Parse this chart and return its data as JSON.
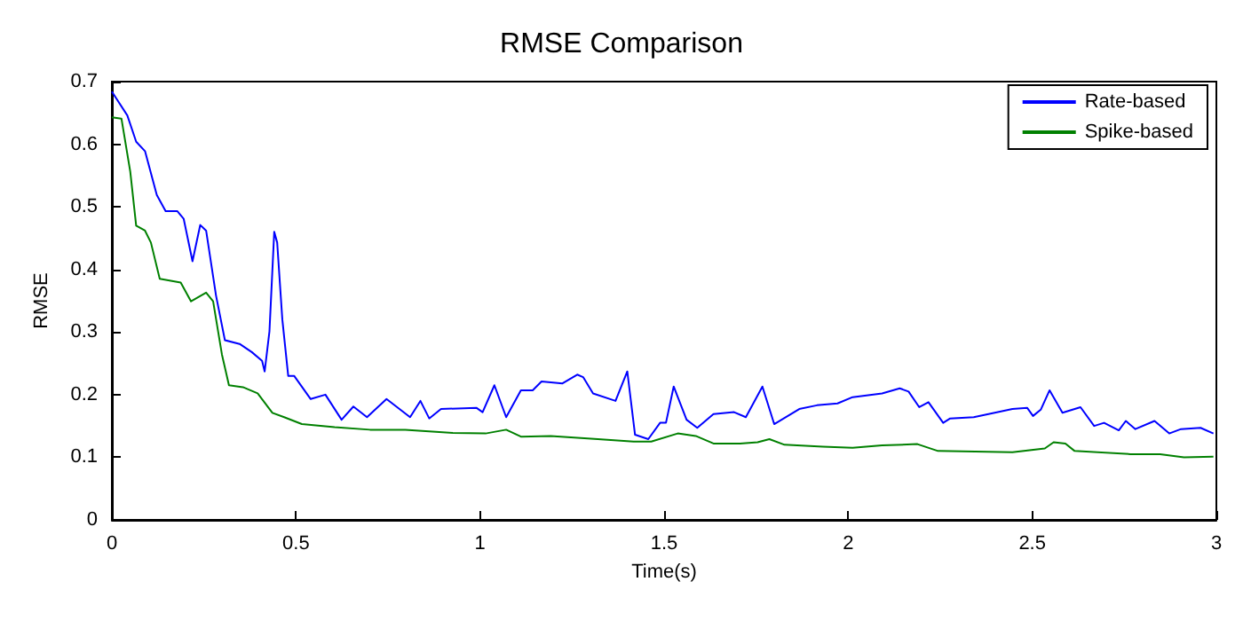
{
  "chart_data": {
    "type": "line",
    "title": "RMSE Comparison",
    "xlabel": "Time(s)",
    "ylabel": "RMSE",
    "xlim": [
      0,
      3
    ],
    "xticks": [
      0,
      0.5,
      1,
      1.5,
      2,
      2.5,
      3
    ],
    "ylim": [
      0,
      0.7
    ],
    "yticks": [
      0,
      0.1,
      0.2,
      0.3,
      0.4,
      0.5,
      0.6,
      0.7
    ],
    "legend": "top right",
    "marker": "none",
    "line_style": "solid",
    "series": [
      {
        "name": "Rate-based",
        "color": "#0000ff",
        "x": [
          0,
          0.042,
          0.066,
          0.09,
          0.122,
          0.146,
          0.178,
          0.195,
          0.219,
          0.24,
          0.256,
          0.283,
          0.307,
          0.347,
          0.38,
          0.408,
          0.415,
          0.428,
          0.441,
          0.449,
          0.463,
          0.479,
          0.495,
          0.54,
          0.58,
          0.624,
          0.656,
          0.693,
          0.746,
          0.81,
          0.838,
          0.862,
          0.894,
          0.99,
          1.007,
          1.039,
          1.071,
          1.111,
          1.143,
          1.167,
          1.224,
          1.264,
          1.28,
          1.307,
          1.368,
          1.4,
          1.421,
          1.457,
          1.489,
          1.505,
          1.526,
          1.561,
          1.59,
          1.634,
          1.69,
          1.722,
          1.767,
          1.799,
          1.867,
          1.915,
          1.971,
          2.012,
          2.092,
          2.14,
          2.164,
          2.193,
          2.218,
          2.258,
          2.277,
          2.341,
          2.398,
          2.446,
          2.486,
          2.502,
          2.523,
          2.547,
          2.582,
          2.631,
          2.668,
          2.695,
          2.735,
          2.754,
          2.78,
          2.832,
          2.872,
          2.904,
          2.957,
          2.992
        ],
        "values": [
          0.684,
          0.646,
          0.604,
          0.589,
          0.519,
          0.493,
          0.493,
          0.481,
          0.413,
          0.471,
          0.462,
          0.358,
          0.287,
          0.281,
          0.268,
          0.254,
          0.237,
          0.301,
          0.46,
          0.443,
          0.32,
          0.23,
          0.23,
          0.193,
          0.2,
          0.16,
          0.181,
          0.164,
          0.193,
          0.164,
          0.19,
          0.162,
          0.177,
          0.179,
          0.172,
          0.215,
          0.164,
          0.207,
          0.207,
          0.221,
          0.218,
          0.232,
          0.228,
          0.202,
          0.19,
          0.237,
          0.136,
          0.129,
          0.155,
          0.155,
          0.213,
          0.16,
          0.147,
          0.169,
          0.172,
          0.164,
          0.213,
          0.153,
          0.177,
          0.183,
          0.186,
          0.196,
          0.202,
          0.21,
          0.205,
          0.18,
          0.188,
          0.155,
          0.162,
          0.164,
          0.171,
          0.177,
          0.179,
          0.166,
          0.176,
          0.207,
          0.171,
          0.18,
          0.15,
          0.155,
          0.143,
          0.158,
          0.145,
          0.158,
          0.138,
          0.145,
          0.147,
          0.138
        ]
      },
      {
        "name": "Spike-based",
        "color": "#008000",
        "x": [
          0,
          0.026,
          0.05,
          0.066,
          0.09,
          0.106,
          0.13,
          0.187,
          0.215,
          0.256,
          0.275,
          0.299,
          0.318,
          0.356,
          0.396,
          0.436,
          0.468,
          0.516,
          0.605,
          0.701,
          0.797,
          0.926,
          1.015,
          1.071,
          1.111,
          1.192,
          1.32,
          1.417,
          1.465,
          1.537,
          1.586,
          1.634,
          1.706,
          1.754,
          1.786,
          1.827,
          1.931,
          2.012,
          2.092,
          2.188,
          2.244,
          2.446,
          2.534,
          2.558,
          2.59,
          2.615,
          2.767,
          2.847,
          2.912,
          2.992
        ],
        "values": [
          0.643,
          0.641,
          0.556,
          0.47,
          0.462,
          0.443,
          0.385,
          0.379,
          0.349,
          0.363,
          0.349,
          0.264,
          0.215,
          0.212,
          0.202,
          0.171,
          0.164,
          0.153,
          0.148,
          0.144,
          0.144,
          0.139,
          0.138,
          0.144,
          0.133,
          0.134,
          0.129,
          0.125,
          0.125,
          0.138,
          0.134,
          0.122,
          0.122,
          0.124,
          0.129,
          0.12,
          0.117,
          0.115,
          0.119,
          0.121,
          0.11,
          0.108,
          0.114,
          0.124,
          0.122,
          0.11,
          0.105,
          0.105,
          0.1,
          0.101
        ]
      }
    ]
  }
}
